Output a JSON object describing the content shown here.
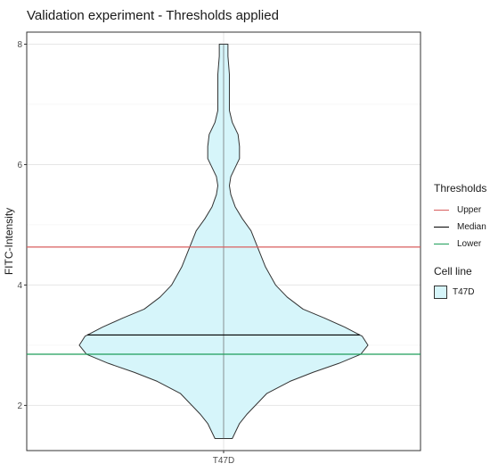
{
  "chart_data": {
    "type": "violin",
    "title": "Validation experiment - Thresholds applied",
    "xlabel": "",
    "ylabel": "FITC-Intensity",
    "categories": [
      "T47D"
    ],
    "ylim": [
      1.25,
      8.2
    ],
    "yticks": [
      2,
      4,
      6,
      8
    ],
    "grid": true,
    "fill_color": "#d6f5fa",
    "violin": {
      "category": "T47D",
      "min": 1.45,
      "max": 8.0,
      "median": 3.17,
      "profile": [
        [
          1.45,
          0.06
        ],
        [
          1.55,
          0.08
        ],
        [
          1.7,
          0.11
        ],
        [
          1.85,
          0.16
        ],
        [
          2.0,
          0.22
        ],
        [
          2.2,
          0.3
        ],
        [
          2.4,
          0.46
        ],
        [
          2.55,
          0.62
        ],
        [
          2.7,
          0.8
        ],
        [
          2.85,
          0.95
        ],
        [
          3.0,
          1.0
        ],
        [
          3.15,
          0.96
        ],
        [
          3.3,
          0.84
        ],
        [
          3.45,
          0.7
        ],
        [
          3.6,
          0.55
        ],
        [
          3.8,
          0.44
        ],
        [
          4.0,
          0.36
        ],
        [
          4.3,
          0.29
        ],
        [
          4.6,
          0.24
        ],
        [
          4.9,
          0.19
        ],
        [
          5.1,
          0.13
        ],
        [
          5.3,
          0.08
        ],
        [
          5.5,
          0.05
        ],
        [
          5.65,
          0.04
        ],
        [
          5.8,
          0.05
        ],
        [
          5.95,
          0.08
        ],
        [
          6.1,
          0.11
        ],
        [
          6.3,
          0.11
        ],
        [
          6.5,
          0.1
        ],
        [
          6.7,
          0.06
        ],
        [
          6.9,
          0.04
        ],
        [
          7.2,
          0.04
        ],
        [
          7.5,
          0.04
        ],
        [
          7.8,
          0.03
        ],
        [
          8.0,
          0.03
        ]
      ]
    },
    "thresholds": [
      {
        "name": "Upper",
        "value": 4.63,
        "color": "#d95f5f"
      },
      {
        "name": "Median",
        "value": 3.17,
        "color": "#000000"
      },
      {
        "name": "Lower",
        "value": 2.85,
        "color": "#1e9e5a"
      }
    ],
    "legend": {
      "position": "right",
      "thresholds_title": "Thresholds",
      "cell_line_title": "Cell line",
      "cell_line_label": "T47D"
    }
  }
}
